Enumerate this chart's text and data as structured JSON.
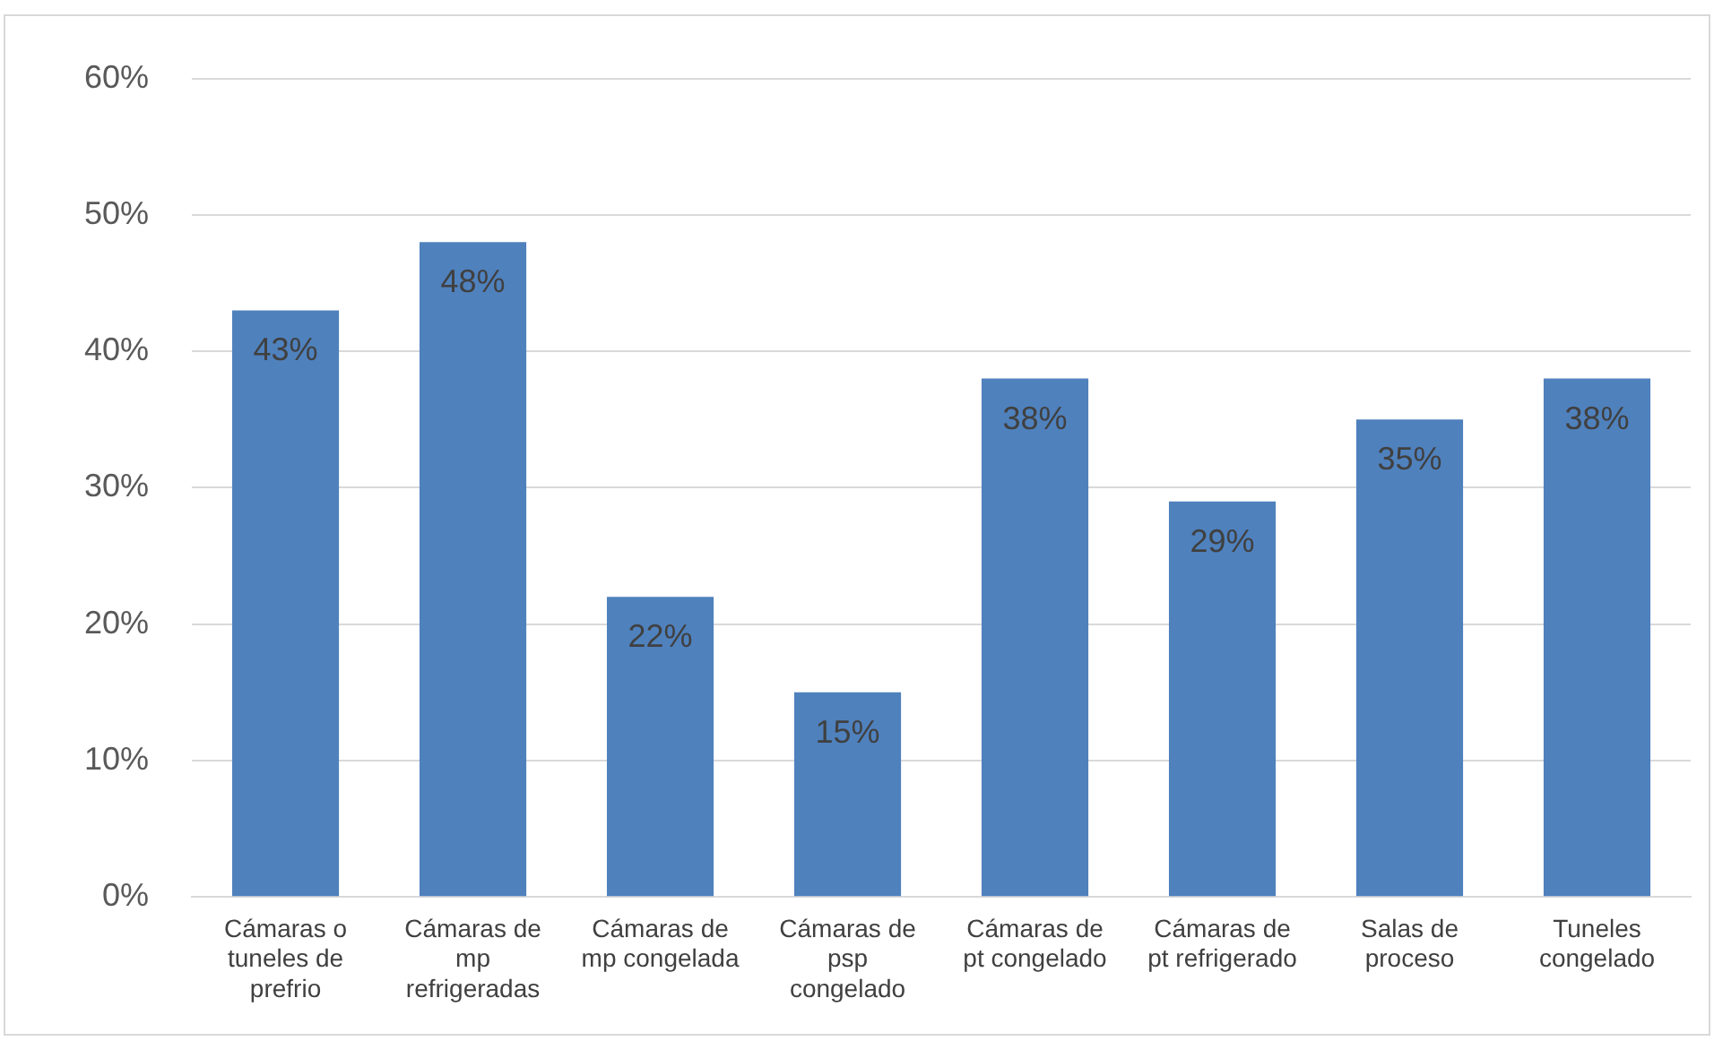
{
  "chart_data": {
    "type": "bar",
    "categories": [
      "Cámaras o tuneles de prefrio",
      "Cámaras de mp refrigeradas",
      "Cámaras de mp congelada",
      "Cámaras de psp congelado",
      "Cámaras de pt congelado",
      "Cámaras de pt refrigerado",
      "Salas de proceso",
      "Tuneles congelado"
    ],
    "values": [
      43,
      48,
      22,
      15,
      38,
      29,
      35,
      38
    ],
    "value_labels": [
      "43%",
      "48%",
      "22%",
      "15%",
      "38%",
      "29%",
      "35%",
      "38%"
    ],
    "color": "#4f81bd",
    "ylim": [
      0,
      60
    ],
    "yticks": [
      {
        "value": 0,
        "label": "0%"
      },
      {
        "value": 10,
        "label": "10%"
      },
      {
        "value": 20,
        "label": "20%"
      },
      {
        "value": 30,
        "label": "30%"
      },
      {
        "value": 40,
        "label": "40%"
      },
      {
        "value": 50,
        "label": "50%"
      },
      {
        "value": 60,
        "label": "60%"
      }
    ],
    "grid": "y"
  }
}
